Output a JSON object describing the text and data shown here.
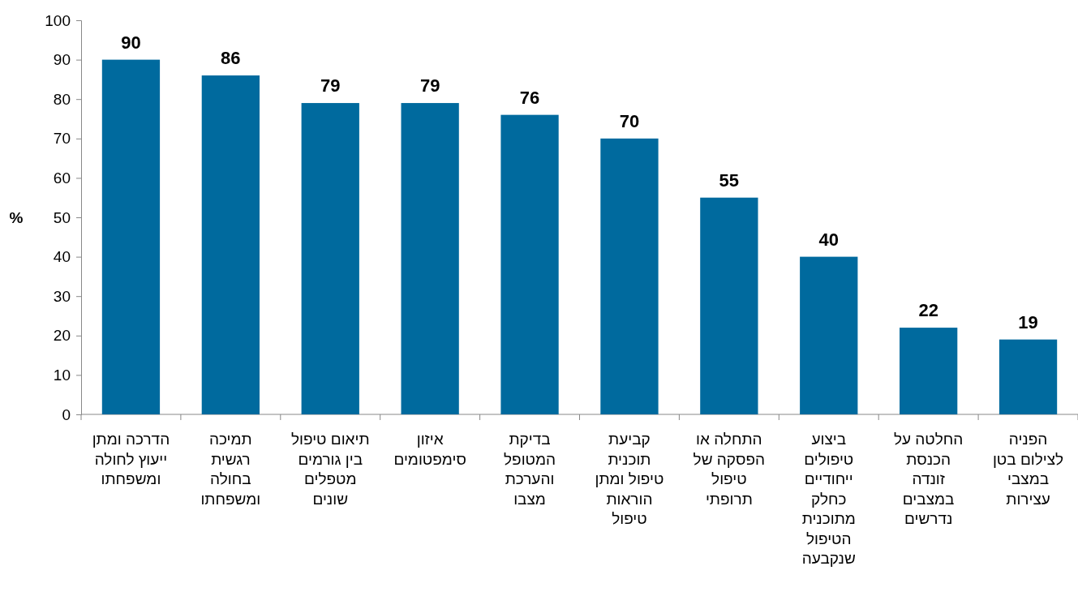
{
  "chart_data": {
    "type": "bar",
    "ylabel": "%",
    "categories": [
      "הדרכה ומתן\nייעוץ לחולה\nומשפחתו",
      "תמיכה\nרגשית\nבחולה\nומשפחתו",
      "תיאום טיפול\nבין גורמים\nמטפלים\nשונים",
      "איזון\nסימפטומים",
      "בדיקת\nהמטופל\nוהערכת\nמצבו",
      "קביעת\nתוכנית\nטיפול ומתן\nהוראות\nטיפול",
      "התחלה או\nהפסקה של\nטיפול\nתרופתי",
      "ביצוע\nטיפולים\nייחודיים\nכחלק\nמתוכנית\nהטיפול\nשנקבעה",
      "החלטה על\nהכנסת\nזונדה\nבמצבים\nנדרשים",
      "הפניה\nלצילום בטן\nבמצבי\nעצירות"
    ],
    "values": [
      90,
      86,
      79,
      79,
      76,
      70,
      55,
      40,
      22,
      19
    ],
    "color": "#006a9e",
    "ylim": [
      0,
      100
    ],
    "yticks": [
      0,
      10,
      20,
      30,
      40,
      50,
      60,
      70,
      80,
      90,
      100
    ],
    "data_labels": true,
    "grid": false
  }
}
